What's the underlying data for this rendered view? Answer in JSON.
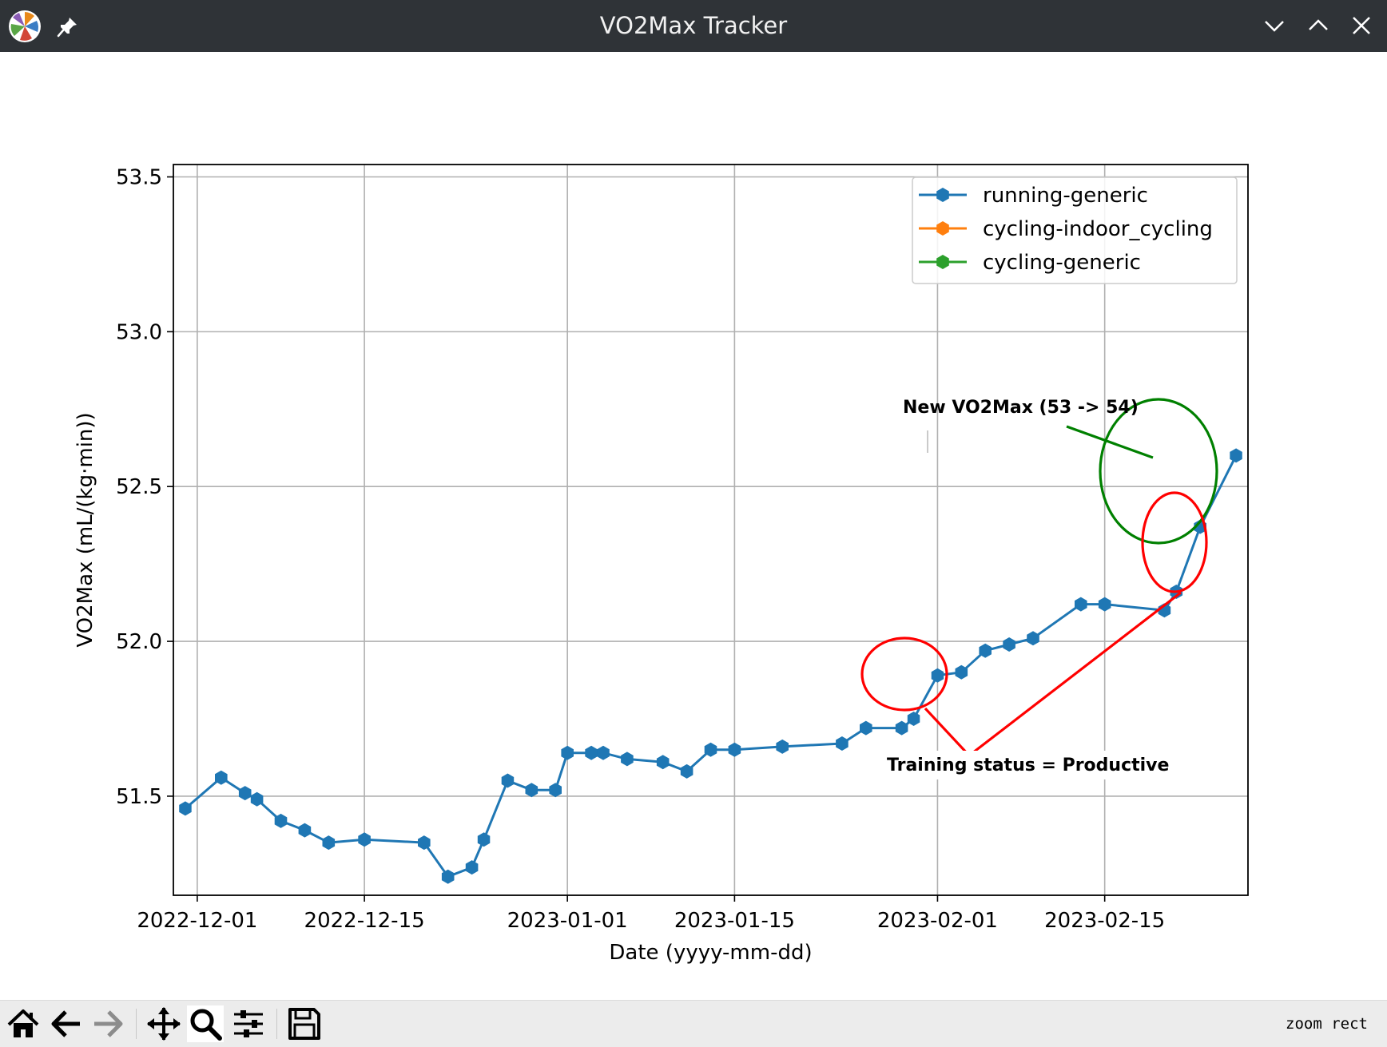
{
  "window": {
    "title": "VO2Max Tracker"
  },
  "toolbar": {
    "buttons": [
      {
        "name": "home",
        "icon": "home-icon"
      },
      {
        "name": "back",
        "icon": "arrow-left-icon"
      },
      {
        "name": "forward",
        "icon": "arrow-right-icon"
      },
      {
        "name": "pan",
        "icon": "move-icon"
      },
      {
        "name": "zoom",
        "icon": "magnifier-icon",
        "active": true
      },
      {
        "name": "configure",
        "icon": "sliders-icon"
      },
      {
        "name": "save",
        "icon": "floppy-disk-icon"
      }
    ],
    "status": "zoom rect"
  },
  "chart_data": {
    "type": "line",
    "title": "",
    "xlabel": "Date (yyyy-mm-dd)",
    "ylabel": "VO2Max (mL/(kg·min))",
    "xlim": [
      "2022-11-29",
      "2023-02-27"
    ],
    "ylim": [
      51.18,
      53.54
    ],
    "x_ticks": [
      "2022-12-01",
      "2022-12-15",
      "2023-01-01",
      "2023-01-15",
      "2023-02-01",
      "2023-02-15"
    ],
    "y_ticks": [
      "51.5",
      "52.0",
      "52.5",
      "53.0",
      "53.5"
    ],
    "grid": true,
    "legend_position": "top-right",
    "colors": {
      "running-generic": "#1f77b4",
      "cycling-indoor_cycling": "#ff7f0e",
      "cycling-generic": "#2ca02c"
    },
    "series": [
      {
        "name": "running-generic",
        "points": [
          {
            "x": "2022-11-30",
            "y": 51.46
          },
          {
            "x": "2022-12-03",
            "y": 51.56
          },
          {
            "x": "2022-12-05",
            "y": 51.51
          },
          {
            "x": "2022-12-06",
            "y": 51.49
          },
          {
            "x": "2022-12-08",
            "y": 51.42
          },
          {
            "x": "2022-12-10",
            "y": 51.39
          },
          {
            "x": "2022-12-12",
            "y": 51.35
          },
          {
            "x": "2022-12-15",
            "y": 51.36
          },
          {
            "x": "2022-12-20",
            "y": 51.35
          },
          {
            "x": "2022-12-22",
            "y": 51.24
          },
          {
            "x": "2022-12-24",
            "y": 51.27
          },
          {
            "x": "2022-12-25",
            "y": 51.36
          },
          {
            "x": "2022-12-27",
            "y": 51.55
          },
          {
            "x": "2022-12-29",
            "y": 51.52
          },
          {
            "x": "2022-12-31",
            "y": 51.52
          },
          {
            "x": "2023-01-01",
            "y": 51.64
          },
          {
            "x": "2023-01-03",
            "y": 51.64
          },
          {
            "x": "2023-01-04",
            "y": 51.64
          },
          {
            "x": "2023-01-06",
            "y": 51.62
          },
          {
            "x": "2023-01-09",
            "y": 51.61
          },
          {
            "x": "2023-01-11",
            "y": 51.58
          },
          {
            "x": "2023-01-13",
            "y": 51.65
          },
          {
            "x": "2023-01-15",
            "y": 51.65
          },
          {
            "x": "2023-01-19",
            "y": 51.66
          },
          {
            "x": "2023-01-24",
            "y": 51.67
          },
          {
            "x": "2023-01-26",
            "y": 51.72
          },
          {
            "x": "2023-01-29",
            "y": 51.72
          },
          {
            "x": "2023-01-30",
            "y": 51.75
          },
          {
            "x": "2023-02-01",
            "y": 51.89
          },
          {
            "x": "2023-02-03",
            "y": 51.9
          },
          {
            "x": "2023-02-05",
            "y": 51.97
          },
          {
            "x": "2023-02-07",
            "y": 51.99
          },
          {
            "x": "2023-02-09",
            "y": 52.01
          },
          {
            "x": "2023-02-13",
            "y": 52.12
          },
          {
            "x": "2023-02-15",
            "y": 52.12
          },
          {
            "x": "2023-02-20",
            "y": 52.1
          },
          {
            "x": "2023-02-21",
            "y": 52.16
          },
          {
            "x": "2023-02-23",
            "y": 52.37
          },
          {
            "x": "2023-02-26",
            "y": 52.6
          }
        ]
      },
      {
        "name": "cycling-indoor_cycling",
        "points": []
      },
      {
        "name": "cycling-generic",
        "points": []
      }
    ],
    "annotations": [
      {
        "text": "New VO2Max (53 -> 54)",
        "color": "#008000",
        "target": {
          "x": "2023-02-25",
          "y": 52.52
        }
      },
      {
        "text": "Training status = Productive",
        "color": "#ff0000",
        "targets": [
          {
            "x": "2023-01-31",
            "y": 51.84
          },
          {
            "x": "2023-02-22",
            "y": 52.29
          }
        ]
      }
    ]
  }
}
